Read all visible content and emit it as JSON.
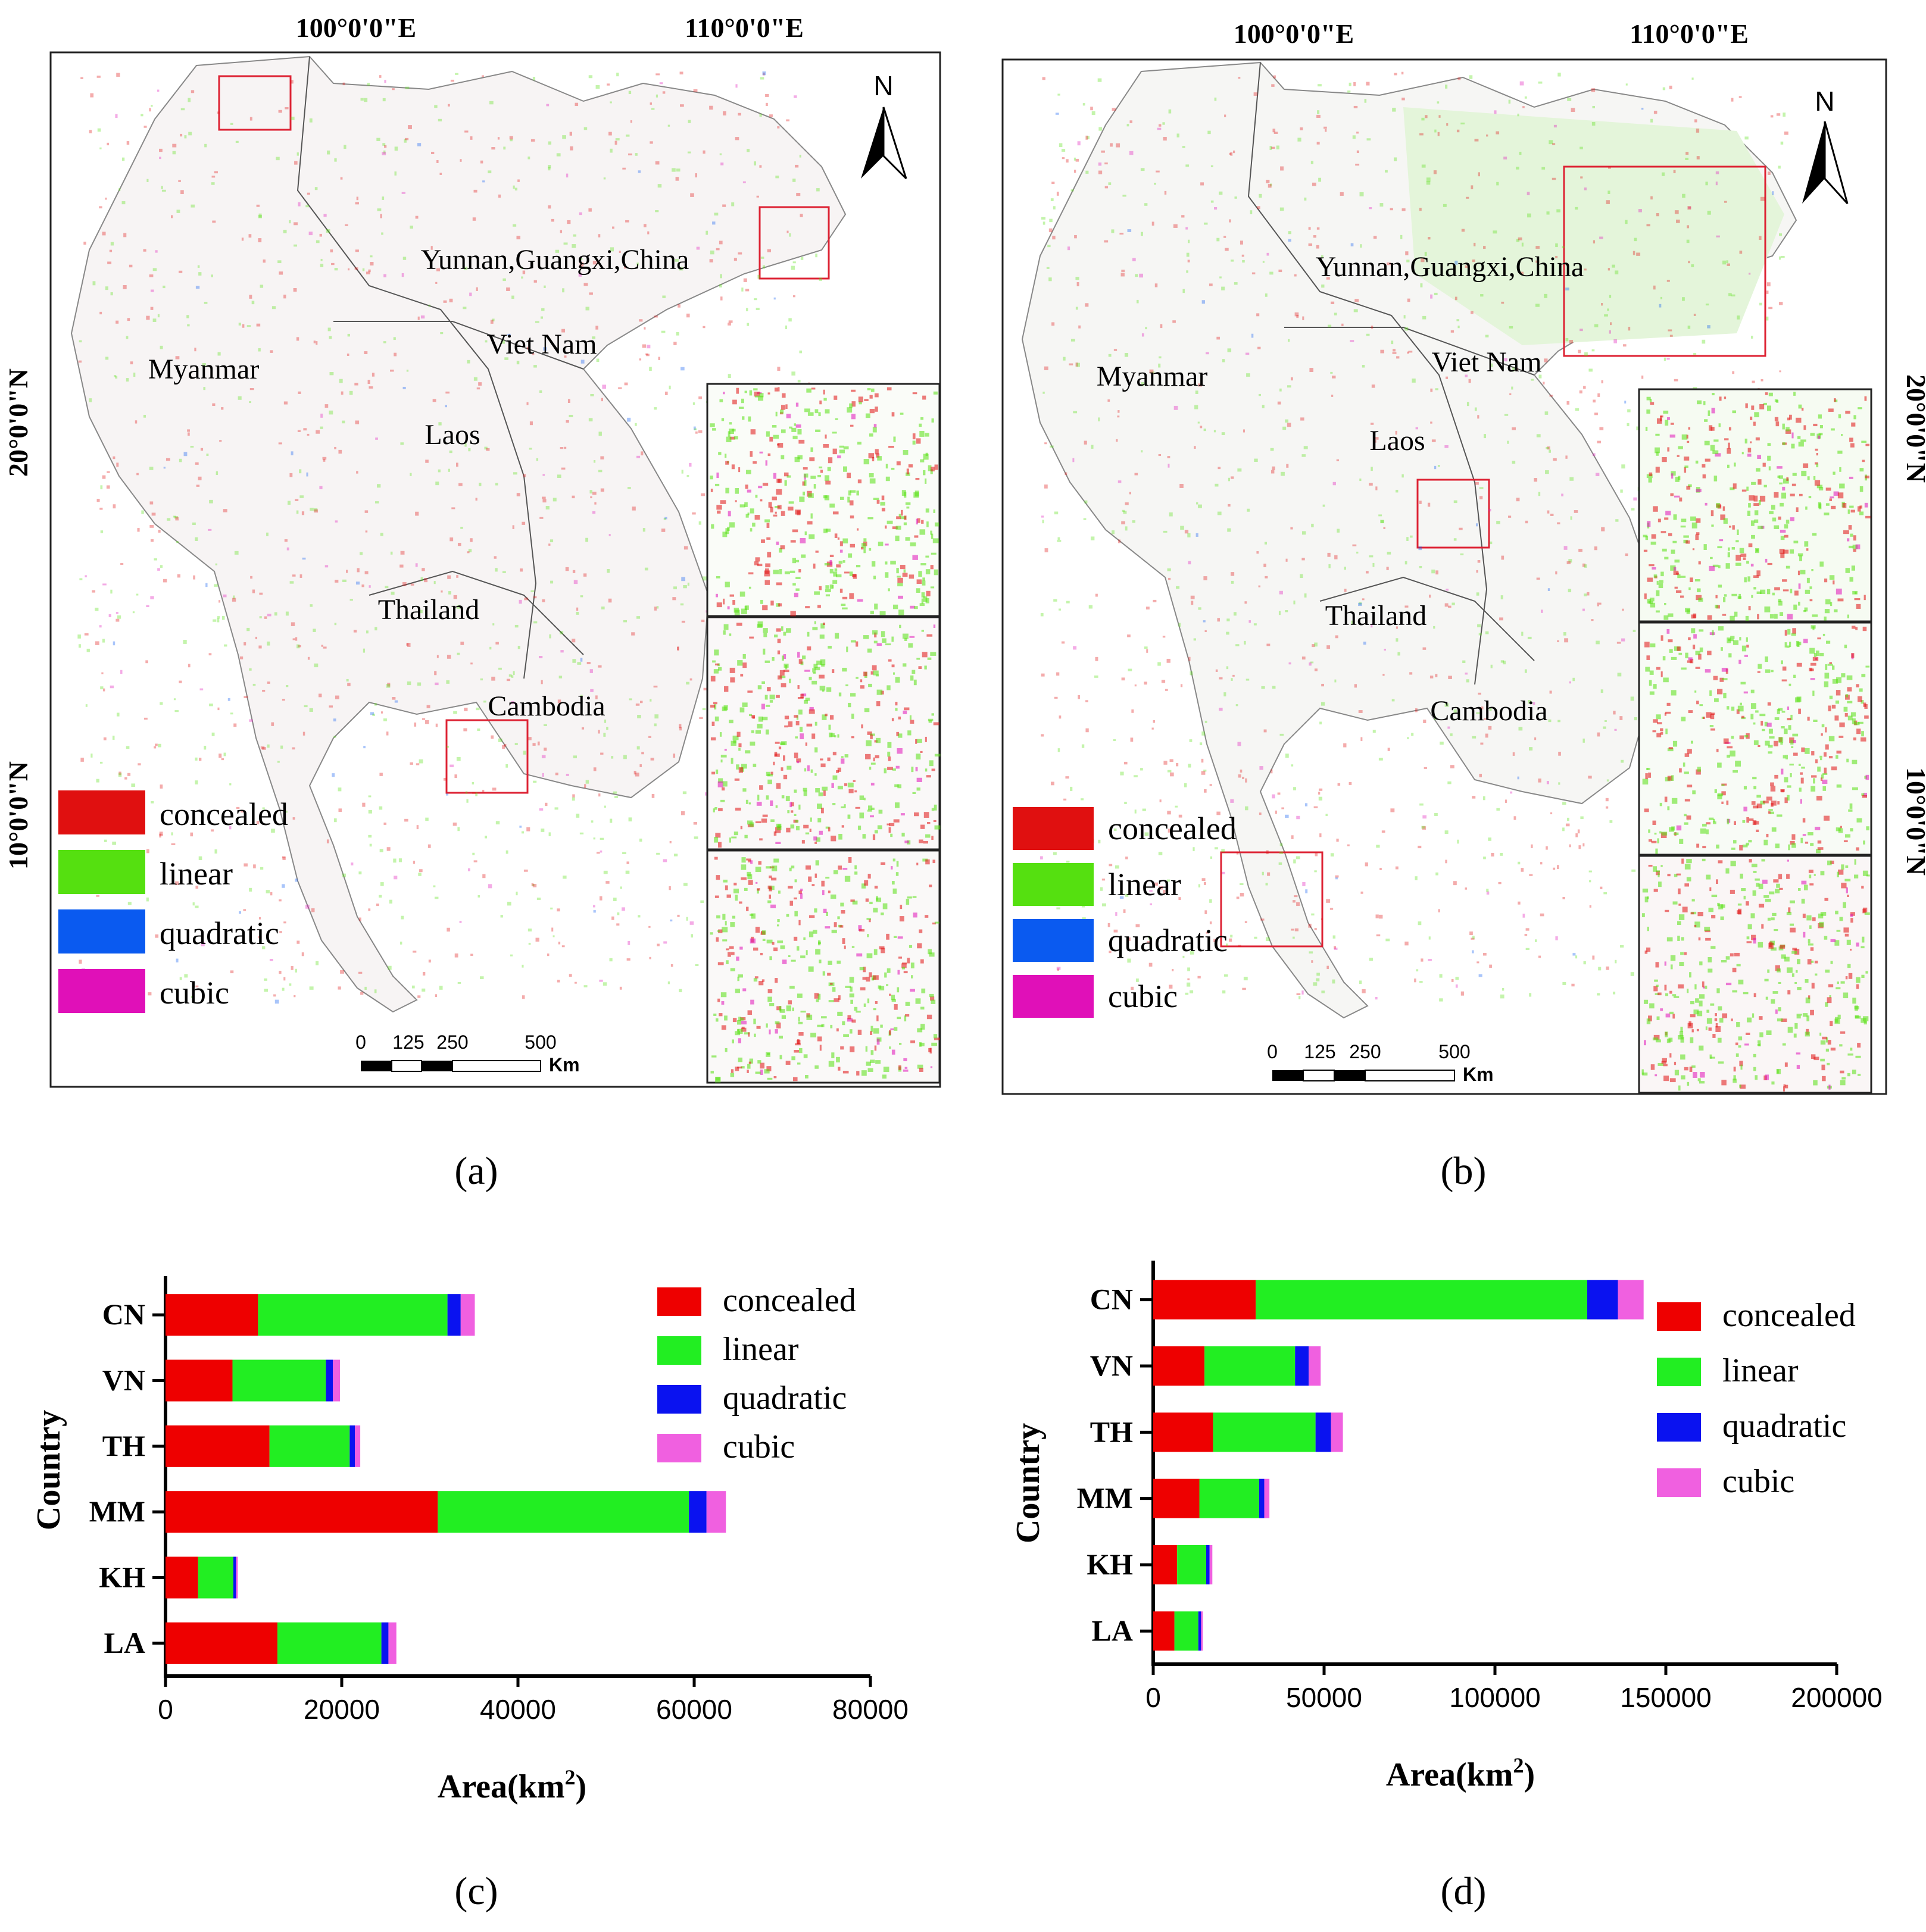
{
  "colors": {
    "concealed": "#ee0000",
    "linear": "#22ee22",
    "quadratic": "#0a12f0",
    "cubic": "#f060e0",
    "map_concealed": "#e01010",
    "map_linear": "#55e010",
    "map_quadratic": "#0a5af0",
    "map_cubic": "#e010b8"
  },
  "legend": [
    "concealed",
    "linear",
    "quadratic",
    "cubic"
  ],
  "captions": {
    "a": "(a)",
    "b": "(b)",
    "c": "(c)",
    "d": "(d)"
  },
  "maps": [
    {
      "id": "a",
      "lon_labels": [
        "100°0'0\"E",
        "110°0'0\"E"
      ],
      "lat_labels": [
        "20°0'0\"N",
        "10°0'0\"N"
      ],
      "north": "N",
      "countries": [
        "Yunnan,Guangxi,China",
        "Myanmar",
        "Viet Nam",
        "Laos",
        "Thailand",
        "Cambodia"
      ],
      "scale": {
        "ticks": [
          "0",
          "125",
          "250",
          "500"
        ],
        "unit": "Km"
      }
    },
    {
      "id": "b",
      "lon_labels": [
        "100°0'0\"E",
        "110°0'0\"E"
      ],
      "lat_labels": [
        "20°0'0\"N",
        "10°0'0\"N"
      ],
      "north": "N",
      "countries": [
        "Yunnan,Guangxi,China",
        "Myanmar",
        "Viet Nam",
        "Laos",
        "Thailand",
        "Cambodia"
      ],
      "scale": {
        "ticks": [
          "0",
          "125",
          "250",
          "500"
        ],
        "unit": "Km"
      }
    }
  ],
  "chart_data": [
    {
      "type": "bar",
      "orientation": "horizontal",
      "stacked": true,
      "categories": [
        "CN",
        "VN",
        "TH",
        "MM",
        "KH",
        "LA"
      ],
      "series": [
        {
          "name": "concealed",
          "values": [
            10500,
            7600,
            11800,
            30900,
            3700,
            12700
          ]
        },
        {
          "name": "linear",
          "values": [
            21500,
            10600,
            9100,
            28500,
            4000,
            11800
          ]
        },
        {
          "name": "quadratic",
          "values": [
            1500,
            800,
            600,
            2000,
            300,
            800
          ]
        },
        {
          "name": "cubic",
          "values": [
            1600,
            800,
            600,
            2200,
            200,
            900
          ]
        }
      ],
      "xlabel": "Area(km²)",
      "ylabel": "Country",
      "xlim": [
        0,
        80000
      ],
      "xticks": [
        "0",
        "20000",
        "40000",
        "60000",
        "80000"
      ]
    },
    {
      "type": "bar",
      "orientation": "horizontal",
      "stacked": true,
      "categories": [
        "CN",
        "VN",
        "TH",
        "MM",
        "KH",
        "LA"
      ],
      "series": [
        {
          "name": "concealed",
          "values": [
            30000,
            15000,
            17500,
            13500,
            7000,
            6200
          ]
        },
        {
          "name": "linear",
          "values": [
            97000,
            26500,
            30000,
            17500,
            8500,
            7000
          ]
        },
        {
          "name": "quadratic",
          "values": [
            9000,
            4000,
            4500,
            1500,
            1000,
            800
          ]
        },
        {
          "name": "cubic",
          "values": [
            7500,
            3500,
            3500,
            1500,
            800,
            500
          ]
        }
      ],
      "xlabel": "Area(km²)",
      "ylabel": "Country",
      "xlim": [
        0,
        200000
      ],
      "xticks": [
        "0",
        "50000",
        "100000",
        "150000",
        "200000"
      ]
    }
  ]
}
